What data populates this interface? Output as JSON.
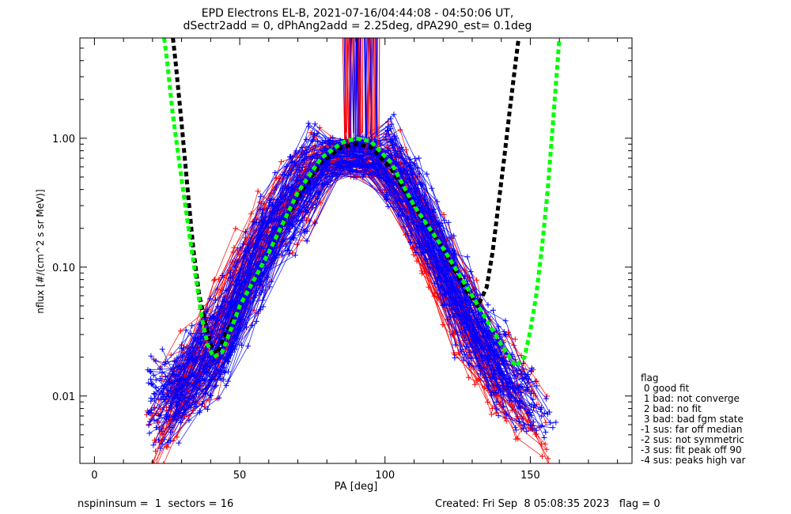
{
  "chart_data": {
    "type": "line",
    "title": "EPD Electrons EL-B, 2021-07-16/04:44:08 - 04:50:06 UT,",
    "subtitle": "dSectr2add = 0, dPhAng2add = 2.25deg, dPA290_est=   0.1deg",
    "xlabel": "PA [deg]",
    "ylabel": "nflux [#/(cm^2 s sr MeV)]",
    "xlim": [
      -5,
      185
    ],
    "ylim": [
      0.003,
      6.0
    ],
    "yscale": "log",
    "xticks": [
      "0",
      "50",
      "100",
      "150"
    ],
    "xtick_values": [
      0,
      50,
      100,
      150
    ],
    "yticks": [
      "1.00",
      "0.10",
      "0.01"
    ],
    "ytick_values": [
      1.0,
      0.1,
      0.01
    ],
    "grid": false,
    "colors": {
      "red": "#ff0000",
      "blue": "#0000ff",
      "black": "#000000",
      "green": "#00ff00"
    },
    "series": [
      {
        "color": "#ff0000",
        "style": "lines with + markers",
        "values": [
          [
            22,
            0.005
          ],
          [
            24,
            0.009
          ],
          [
            30,
            0.012
          ],
          [
            38,
            0.02
          ],
          [
            42,
            0.03
          ],
          [
            50,
            0.08
          ],
          [
            60,
            0.18
          ],
          [
            70,
            0.4
          ],
          [
            78,
            0.72
          ],
          [
            85,
            0.72
          ],
          [
            92,
            0.72
          ],
          [
            98,
            0.7
          ],
          [
            105,
            0.45
          ],
          [
            115,
            0.16
          ],
          [
            125,
            0.05
          ],
          [
            135,
            0.02
          ],
          [
            145,
            0.011
          ],
          [
            152,
            0.008
          ],
          [
            158,
            0.006
          ]
        ]
      },
      {
        "color": "#0000ff",
        "style": "lines with + markers",
        "values": [
          [
            20,
            0.008
          ],
          [
            25,
            0.01
          ],
          [
            32,
            0.013
          ],
          [
            38,
            0.02
          ],
          [
            44,
            0.025
          ],
          [
            52,
            0.07
          ],
          [
            62,
            0.2
          ],
          [
            72,
            0.45
          ],
          [
            80,
            0.72
          ],
          [
            88,
            0.72
          ],
          [
            96,
            0.72
          ],
          [
            100,
            0.68
          ],
          [
            108,
            0.38
          ],
          [
            118,
            0.13
          ],
          [
            128,
            0.04
          ],
          [
            138,
            0.018
          ],
          [
            148,
            0.01
          ],
          [
            155,
            0.007
          ],
          [
            158,
            0.006
          ]
        ]
      },
      {
        "color": "#000000",
        "style": "thick dashed",
        "values": [
          [
            27,
            6.0
          ],
          [
            28,
            3.8
          ],
          [
            30,
            1.3
          ],
          [
            32,
            0.42
          ],
          [
            34,
            0.14
          ],
          [
            36,
            0.062
          ],
          [
            38,
            0.038
          ],
          [
            40,
            0.025
          ],
          [
            42,
            0.021
          ],
          [
            45,
            0.03
          ],
          [
            50,
            0.05
          ],
          [
            60,
            0.13
          ],
          [
            70,
            0.35
          ],
          [
            78,
            0.65
          ],
          [
            85,
            0.85
          ],
          [
            90,
            0.9
          ],
          [
            95,
            0.86
          ],
          [
            102,
            0.58
          ],
          [
            110,
            0.3
          ],
          [
            120,
            0.14
          ],
          [
            128,
            0.065
          ],
          [
            132,
            0.05
          ],
          [
            135,
            0.07
          ],
          [
            137,
            0.13
          ],
          [
            139,
            0.3
          ],
          [
            141,
            0.7
          ],
          [
            143,
            1.7
          ],
          [
            145,
            4.0
          ],
          [
            146,
            6.0
          ]
        ]
      },
      {
        "color": "#00ff00",
        "style": "thick dashed",
        "values": [
          [
            24,
            6.0
          ],
          [
            25,
            4.0
          ],
          [
            27,
            1.5
          ],
          [
            30,
            0.48
          ],
          [
            33,
            0.16
          ],
          [
            35,
            0.08
          ],
          [
            37,
            0.04
          ],
          [
            39,
            0.025
          ],
          [
            41,
            0.02
          ],
          [
            44,
            0.022
          ],
          [
            50,
            0.05
          ],
          [
            60,
            0.13
          ],
          [
            70,
            0.38
          ],
          [
            78,
            0.7
          ],
          [
            85,
            0.92
          ],
          [
            90,
            1.0
          ],
          [
            95,
            0.95
          ],
          [
            102,
            0.65
          ],
          [
            110,
            0.3
          ],
          [
            120,
            0.14
          ],
          [
            130,
            0.06
          ],
          [
            140,
            0.025
          ],
          [
            145,
            0.017
          ],
          [
            148,
            0.02
          ],
          [
            150,
            0.032
          ],
          [
            152,
            0.06
          ],
          [
            154,
            0.14
          ],
          [
            156,
            0.4
          ],
          [
            158,
            1.5
          ],
          [
            160,
            6.0
          ]
        ]
      }
    ],
    "legend": {
      "position": "right",
      "title": "flag",
      "entries": [
        " 0 good fit",
        " 1 bad: not converge",
        " 2 bad: no fit",
        " 3 bad: bad fgm state",
        "-1 sus: far off median",
        "-2 sus: not symmetric",
        "-3 sus: fit peak off 90",
        "-4 sus: peaks high var"
      ]
    }
  },
  "footer": {
    "left": "nspininsum =  1  sectors = 16",
    "right": "Created: Fri Sep  8 05:08:35 2023   flag = 0"
  }
}
